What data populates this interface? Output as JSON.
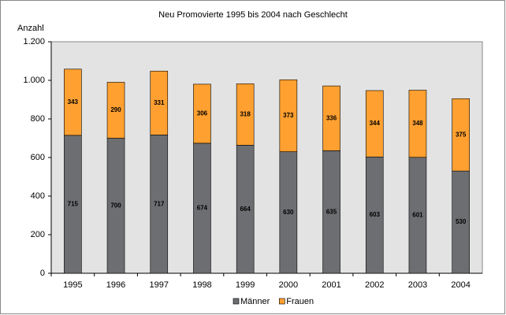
{
  "chart_data": {
    "type": "bar",
    "stacked": true,
    "title": "Neu Promovierte 1995 bis 2004 nach Geschlecht",
    "y_label": "Anzahl",
    "categories": [
      "1995",
      "1996",
      "1997",
      "1998",
      "1999",
      "2000",
      "2001",
      "2002",
      "2003",
      "2004"
    ],
    "series": [
      {
        "name": "Männer",
        "color": "#6d6e71",
        "values": [
          715,
          700,
          717,
          674,
          664,
          630,
          635,
          603,
          601,
          530
        ]
      },
      {
        "name": "Frauen",
        "color": "#ffa030",
        "values": [
          343,
          290,
          331,
          306,
          318,
          373,
          336,
          344,
          348,
          375
        ]
      }
    ],
    "ylim": [
      0,
      1200
    ],
    "yticks": [
      0,
      200,
      400,
      600,
      800,
      {
        "value": 1000,
        "label": "1.000"
      },
      {
        "value": 1200,
        "label": "1.200"
      }
    ],
    "grid": false,
    "legend": "bottom"
  }
}
